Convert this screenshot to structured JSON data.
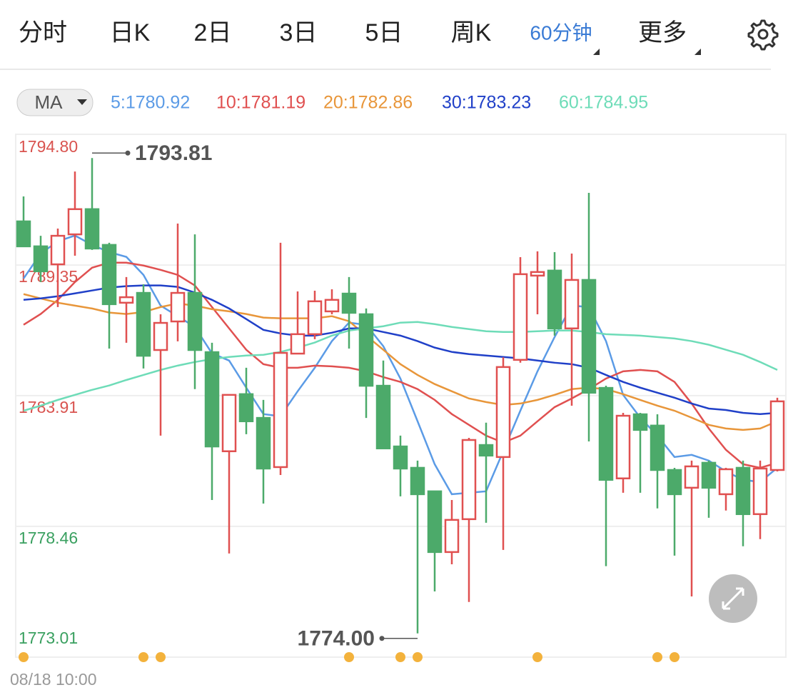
{
  "tabs": [
    "分时",
    "日K",
    "2日",
    "3日",
    "5日",
    "周K",
    "60分钟",
    "更多"
  ],
  "indicator": "MA",
  "chart_data": {
    "type": "candlestick",
    "up_color": "#e05050",
    "down_color": "#4caa6a",
    "ylim": [
      1773.01,
      1794.8
    ],
    "yticks": [
      {
        "value": 1794.8,
        "label": "1794.80"
      },
      1789.35,
      1783.91,
      1778.46,
      1773.01
    ],
    "grid": true,
    "x_label": "08/18 10:00",
    "open": [
      1791.17,
      1790.13,
      1789.38,
      1790.63,
      1791.68,
      1790.19,
      1787.78,
      1788.19,
      1785.81,
      1787.0,
      1788.19,
      1785.72,
      1781.59,
      1783.97,
      1782.98,
      1780.93,
      1785.66,
      1786.47,
      1787.42,
      1788.16,
      1787.3,
      1784.32,
      1781.79,
      1780.9,
      1779.92,
      1777.39,
      1778.76,
      1781.85,
      1781.35,
      1785.4,
      1788.91,
      1789.12,
      1786.71,
      1788.73,
      1784.23,
      1780.46,
      1783.13,
      1782.66,
      1780.81,
      1780.07,
      1781.11,
      1779.8,
      1780.9,
      1778.97,
      1780.81
    ],
    "high": [
      1792.21,
      1790.57,
      1790.87,
      1793.25,
      1793.81,
      1790.28,
      1788.85,
      1788.55,
      1787.3,
      1791.08,
      1790.63,
      1786.11,
      1783.73,
      1785.07,
      1783.73,
      1790.28,
      1788.25,
      1788.28,
      1788.34,
      1788.85,
      1787.54,
      1785.37,
      1782.24,
      1781.2,
      1779.92,
      1779.56,
      1782.15,
      1782.78,
      1785.51,
      1789.68,
      1789.92,
      1789.89,
      1789.83,
      1792.36,
      1784.32,
      1783.19,
      1783.19,
      1783.13,
      1780.9,
      1781.2,
      1781.2,
      1780.9,
      1781.2,
      1781.2,
      1783.82
    ],
    "low": [
      1790.13,
      1788.64,
      1787.6,
      1789.74,
      1789.98,
      1785.87,
      1786.11,
      1785.04,
      1782.24,
      1786.17,
      1784.18,
      1779.56,
      1777.33,
      1782.3,
      1779.41,
      1780.6,
      1785.66,
      1786.26,
      1787.3,
      1785.87,
      1782.98,
      1781.71,
      1779.71,
      1774.0,
      1775.75,
      1776.88,
      1775.31,
      1778.61,
      1777.48,
      1785.28,
      1787.3,
      1786.41,
      1783.49,
      1782.0,
      1776.8,
      1779.86,
      1779.86,
      1779.21,
      1777.24,
      1775.54,
      1778.82,
      1779.12,
      1777.63,
      1777.93,
      1780.75
    ],
    "close": [
      1790.13,
      1789.09,
      1790.57,
      1791.68,
      1790.04,
      1787.72,
      1788.01,
      1785.57,
      1786.94,
      1788.19,
      1785.81,
      1781.79,
      1783.94,
      1782.84,
      1780.87,
      1785.69,
      1786.47,
      1787.84,
      1787.9,
      1787.36,
      1784.32,
      1781.71,
      1780.87,
      1779.8,
      1777.39,
      1778.73,
      1782.06,
      1781.41,
      1785.1,
      1788.97,
      1789.06,
      1786.71,
      1788.73,
      1784.03,
      1780.4,
      1783.07,
      1782.48,
      1780.81,
      1779.8,
      1780.96,
      1780.07,
      1780.84,
      1778.97,
      1780.87,
      1783.67
    ],
    "series": [
      {
        "name": "5:1780.92",
        "color": "#5b9be6",
        "values": [
          1788.79,
          1789.83,
          1790.34,
          1790.58,
          1790.19,
          1789.89,
          1789.69,
          1788.94,
          1787.66,
          1787.22,
          1786.77,
          1785.67,
          1785.37,
          1784.24,
          1783.14,
          1783.05,
          1784.09,
          1785.07,
          1786.18,
          1786.95,
          1786.86,
          1785.97,
          1784.62,
          1782.84,
          1781.05,
          1779.8,
          1779.86,
          1779.92,
          1781.59,
          1783.28,
          1784.92,
          1786.35,
          1787.66,
          1787.6,
          1786.18,
          1783.94,
          1782.99,
          1782.24,
          1781.35,
          1781.44,
          1781.2,
          1780.75,
          1780.4,
          1780.31,
          1780.9
        ]
      },
      {
        "name": "10:1781.19",
        "color": "#e05050",
        "values": [
          1786.86,
          1787.31,
          1787.9,
          1788.64,
          1789.24,
          1789.45,
          1789.45,
          1789.33,
          1789.15,
          1788.94,
          1788.5,
          1787.6,
          1786.71,
          1785.82,
          1785.22,
          1785.07,
          1785.07,
          1785.16,
          1785.13,
          1785.07,
          1784.92,
          1784.68,
          1784.48,
          1784.18,
          1783.73,
          1783.14,
          1782.69,
          1782.24,
          1781.95,
          1782.24,
          1782.84,
          1783.43,
          1783.79,
          1784.18,
          1784.62,
          1784.92,
          1784.98,
          1784.92,
          1784.48,
          1783.58,
          1782.54,
          1781.65,
          1781.05,
          1780.9,
          1781.11
        ]
      },
      {
        "name": "20:1782.86",
        "color": "#e8963a",
        "values": [
          1788.14,
          1787.96,
          1787.78,
          1787.66,
          1787.54,
          1787.37,
          1787.31,
          1787.39,
          1787.6,
          1787.75,
          1787.66,
          1787.51,
          1787.42,
          1787.31,
          1787.16,
          1787.13,
          1787.13,
          1787.13,
          1787.22,
          1787.01,
          1786.41,
          1785.82,
          1785.22,
          1784.77,
          1784.39,
          1784.09,
          1783.79,
          1783.64,
          1783.52,
          1783.58,
          1783.73,
          1783.94,
          1784.18,
          1784.24,
          1784.18,
          1783.97,
          1783.73,
          1783.49,
          1783.28,
          1782.99,
          1782.69,
          1782.54,
          1782.48,
          1782.54,
          1782.84
        ]
      },
      {
        "name": "30:1783.23",
        "color": "#2040c8",
        "values": [
          1787.9,
          1787.96,
          1788.05,
          1788.17,
          1788.29,
          1788.41,
          1788.47,
          1788.5,
          1788.5,
          1788.44,
          1788.2,
          1787.9,
          1787.54,
          1787.1,
          1786.65,
          1786.5,
          1786.41,
          1786.41,
          1786.53,
          1786.71,
          1786.71,
          1786.56,
          1786.41,
          1786.18,
          1785.91,
          1785.73,
          1785.64,
          1785.58,
          1785.52,
          1785.46,
          1785.37,
          1785.28,
          1785.22,
          1785.07,
          1784.77,
          1784.48,
          1784.24,
          1784.03,
          1783.82,
          1783.58,
          1783.37,
          1783.31,
          1783.19,
          1783.14,
          1783.19
        ]
      },
      {
        "name": "60:1784.95",
        "color": "#6edcb8",
        "values": [
          1783.28,
          1783.49,
          1783.73,
          1783.94,
          1784.15,
          1784.33,
          1784.56,
          1784.77,
          1784.98,
          1785.16,
          1785.31,
          1785.43,
          1785.52,
          1785.58,
          1785.61,
          1785.73,
          1785.91,
          1786.12,
          1786.41,
          1786.62,
          1786.71,
          1786.8,
          1786.95,
          1786.98,
          1786.89,
          1786.77,
          1786.68,
          1786.59,
          1786.56,
          1786.56,
          1786.59,
          1786.62,
          1786.62,
          1786.56,
          1786.47,
          1786.44,
          1786.41,
          1786.35,
          1786.29,
          1786.18,
          1786.03,
          1785.82,
          1785.61,
          1785.31,
          1784.98
        ]
      }
    ],
    "annotations": [
      {
        "value": 1793.81,
        "label": "1793.81"
      },
      {
        "value": 1774.0,
        "label": "1774.00"
      }
    ]
  }
}
